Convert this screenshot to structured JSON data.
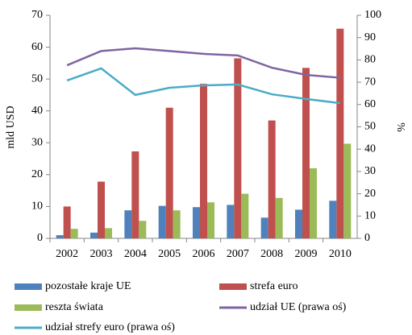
{
  "chart_data": {
    "type": "bar",
    "y_label": "mld USD",
    "y2_label": "%",
    "categories": [
      "2002",
      "2003",
      "2004",
      "2005",
      "2006",
      "2007",
      "2008",
      "2009",
      "2010"
    ],
    "series": [
      {
        "name": "pozostałe kraje UE",
        "color": "#4f81bd",
        "values": [
          1,
          1.8,
          8.8,
          10.2,
          9.8,
          10.5,
          6.5,
          9,
          11.8
        ]
      },
      {
        "name": "strefa euro",
        "color": "#c0504d",
        "values": [
          10,
          17.8,
          27.3,
          41,
          48.5,
          56.5,
          37,
          53.5,
          65.8
        ]
      },
      {
        "name": "reszta świata",
        "color": "#9bbb59",
        "values": [
          3,
          3.2,
          5.5,
          8.8,
          11.3,
          14,
          12.7,
          22,
          29.7
        ]
      },
      {
        "name": "udział UE (prawa oś)",
        "color": "#8064a2",
        "type": "line",
        "axis": "y2",
        "values": [
          77.6,
          84,
          85.2,
          84,
          82.7,
          82,
          76.5,
          73.3,
          72
        ]
      },
      {
        "name": "udział strefy euro (prawa oś)",
        "color": "#4bacc6",
        "type": "line",
        "axis": "y2",
        "values": [
          70.8,
          76.2,
          64.3,
          67.5,
          68.6,
          69,
          64.6,
          62.5,
          60.6
        ]
      }
    ],
    "ylim": [
      0,
      70
    ],
    "yticks": [
      0,
      10,
      20,
      30,
      40,
      50,
      60,
      70
    ],
    "y2lim": [
      0,
      100
    ],
    "y2ticks": [
      0,
      10,
      20,
      30,
      40,
      50,
      60,
      70,
      80,
      90,
      100
    ],
    "grid": false,
    "legend": "bottom"
  }
}
